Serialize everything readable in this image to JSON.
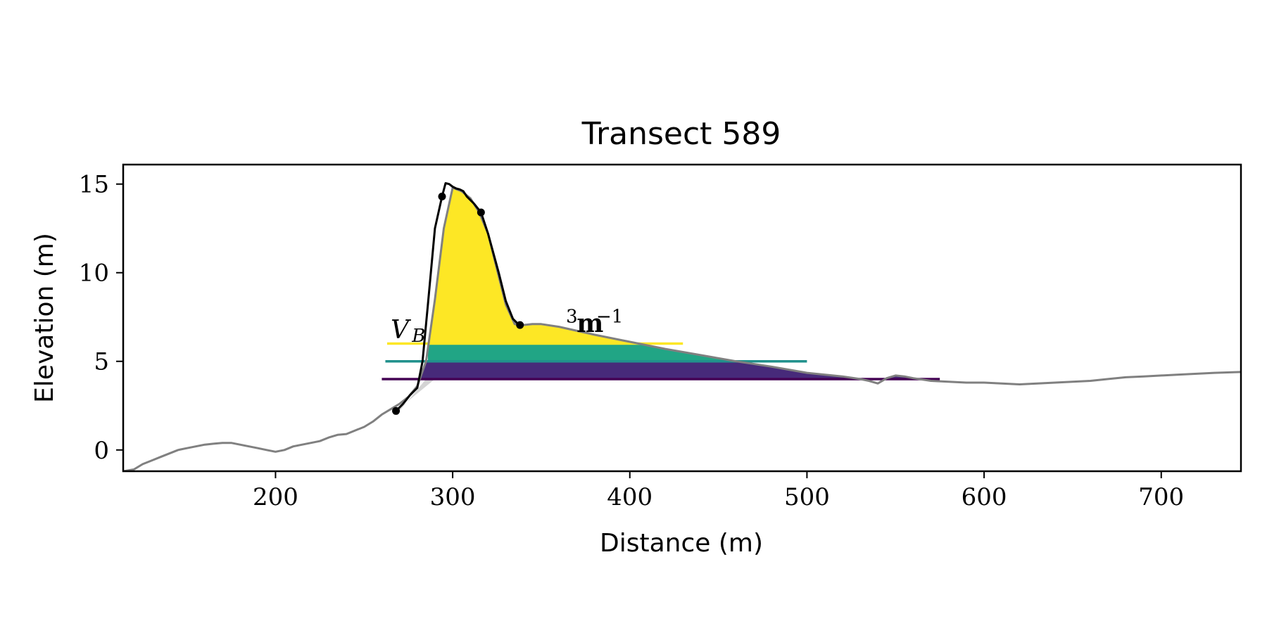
{
  "chart_data": {
    "type": "line",
    "title": "Transect 589",
    "xlabel": "Distance (m)",
    "ylabel": "Elevation (m)",
    "xlim": [
      114,
      745
    ],
    "ylim": [
      -1.2,
      16.1
    ],
    "xticks": [
      {
        "value": 200,
        "label": "200"
      },
      {
        "value": 300,
        "label": "300"
      },
      {
        "value": 400,
        "label": "400"
      },
      {
        "value": 500,
        "label": "500"
      },
      {
        "value": 600,
        "label": "600"
      },
      {
        "value": 700,
        "label": "700"
      }
    ],
    "yticks": [
      {
        "value": 0,
        "label": "0"
      },
      {
        "value": 5,
        "label": "5"
      },
      {
        "value": 10,
        "label": "10"
      },
      {
        "value": 15,
        "label": "15"
      }
    ],
    "grid": false,
    "profile": {
      "color": "#808080",
      "x": [
        114,
        120,
        125,
        130,
        135,
        140,
        145,
        150,
        155,
        160,
        165,
        170,
        175,
        180,
        185,
        190,
        195,
        200,
        205,
        210,
        215,
        220,
        225,
        230,
        235,
        240,
        245,
        250,
        255,
        260,
        265,
        270,
        275,
        280,
        285,
        290,
        295,
        300,
        305,
        310,
        315,
        320,
        325,
        330,
        335,
        340,
        345,
        350,
        360,
        380,
        400,
        420,
        440,
        460,
        480,
        500,
        520,
        530,
        535,
        540,
        545,
        550,
        555,
        560,
        570,
        580,
        590,
        600,
        610,
        620,
        630,
        640,
        650,
        660,
        670,
        680,
        690,
        700,
        710,
        720,
        730,
        745
      ],
      "y": [
        -1.2,
        -1.1,
        -0.8,
        -0.6,
        -0.4,
        -0.2,
        0,
        0.1,
        0.2,
        0.3,
        0.35,
        0.4,
        0.4,
        0.3,
        0.2,
        0.1,
        0,
        -0.1,
        0,
        0.2,
        0.3,
        0.4,
        0.5,
        0.7,
        0.85,
        0.9,
        1.1,
        1.3,
        1.6,
        2.0,
        2.3,
        2.6,
        3.0,
        3.6,
        5.0,
        8.5,
        12.5,
        14.8,
        14.6,
        14.2,
        13.4,
        12.2,
        10.2,
        8.2,
        7.1,
        7.05,
        7.1,
        7.1,
        6.95,
        6.5,
        6.1,
        5.7,
        5.35,
        5.0,
        4.7,
        4.35,
        4.15,
        4.0,
        3.9,
        3.75,
        4.05,
        4.2,
        4.15,
        4.05,
        3.9,
        3.85,
        3.8,
        3.8,
        3.75,
        3.7,
        3.75,
        3.8,
        3.85,
        3.9,
        4.0,
        4.1,
        4.15,
        4.2,
        4.25,
        4.3,
        4.35,
        4.4
      ]
    },
    "dune_outline": {
      "color": "#000000",
      "x": [
        268,
        272,
        276,
        280,
        283,
        286,
        290,
        294,
        296,
        298,
        300,
        302,
        304,
        306,
        308,
        312,
        316,
        320,
        326,
        330,
        334,
        338
      ],
      "y": [
        2.2,
        2.6,
        3.1,
        3.5,
        5.0,
        8.2,
        12.5,
        14.3,
        15.05,
        15.0,
        14.85,
        14.75,
        14.7,
        14.6,
        14.3,
        13.9,
        13.4,
        12.2,
        10.0,
        8.4,
        7.4,
        7.0
      ]
    },
    "key_points": {
      "color": "#000000",
      "x": [
        268,
        294,
        316,
        338
      ],
      "y": [
        2.2,
        14.3,
        13.4,
        7.05
      ]
    },
    "volume_layers": [
      {
        "color": "#fde725",
        "base": 6.0,
        "top": 16.0,
        "x_start": 280,
        "x_end": 520
      },
      {
        "color": "#21a585",
        "base": 5.0,
        "top": 5.95,
        "x_start": 280,
        "x_end": 520
      },
      {
        "color": "#472a7a",
        "base": 4.0,
        "top": 4.95,
        "x_start": 280,
        "x_end": 575
      }
    ],
    "toe_wedge": {
      "color": "#d4d4d4",
      "x": [
        268,
        290,
        285,
        270
      ],
      "y": [
        2.2,
        4.0,
        4.0,
        2.2
      ]
    },
    "level_lines": [
      {
        "color": "#fde725",
        "y": 6.0,
        "x_start": 263,
        "x_end": 430
      },
      {
        "color": "#21918c",
        "y": 5.0,
        "x_start": 262,
        "x_end": 500
      },
      {
        "color": "#440154",
        "y": 4.0,
        "x_start": 260,
        "x_end": 575
      }
    ],
    "annotations": [
      {
        "text": "V",
        "x": 265,
        "y": 6.3
      },
      {
        "text": "B",
        "x": 277,
        "y": 6.1
      },
      {
        "text": "3",
        "x": 364,
        "y": 7.2
      },
      {
        "text": "−1",
        "x": 381,
        "y": 7.2
      },
      {
        "text": "m",
        "x": 370,
        "y": 6.65
      }
    ]
  }
}
